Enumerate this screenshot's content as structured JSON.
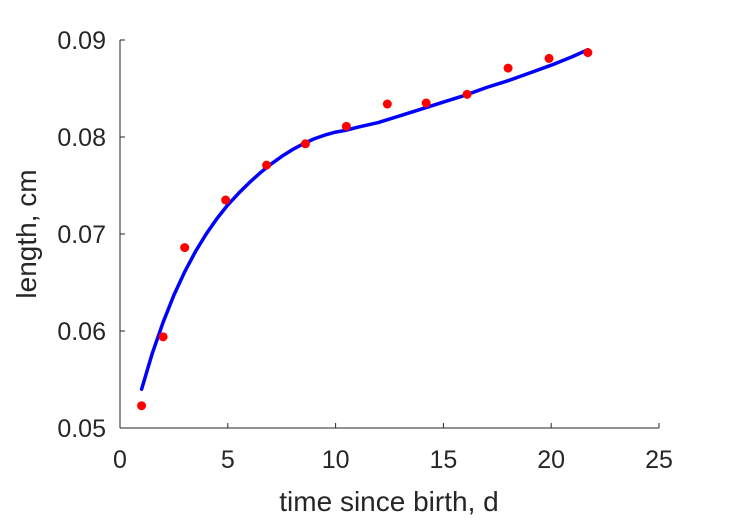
{
  "chart_data": {
    "type": "scatter",
    "title": "",
    "xlabel": "time since birth, d",
    "ylabel": "length, cm",
    "xlim": [
      0,
      25
    ],
    "ylim": [
      0.05,
      0.09
    ],
    "xticks": [
      0,
      5,
      10,
      15,
      20,
      25
    ],
    "yticks": [
      0.05,
      0.06,
      0.07,
      0.08,
      0.09
    ],
    "xtick_labels": [
      "0",
      "5",
      "10",
      "15",
      "20",
      "25"
    ],
    "ytick_labels": [
      "0.05",
      "0.06",
      "0.07",
      "0.08",
      "0.09"
    ],
    "grid": false,
    "legend": "none",
    "series": [
      {
        "type": "scatter",
        "color": "#ff0000",
        "x": [
          1.0,
          2.0,
          3.0,
          4.9,
          6.8,
          8.6,
          10.5,
          12.4,
          14.2,
          16.1,
          18.0,
          19.9,
          21.7
        ],
        "y": [
          0.0523,
          0.0594,
          0.0686,
          0.0735,
          0.0771,
          0.0793,
          0.0811,
          0.0834,
          0.0835,
          0.0844,
          0.0871,
          0.0881,
          0.0887
        ]
      },
      {
        "type": "line",
        "color": "#0000ff",
        "x": [
          1.0,
          1.5,
          2.0,
          2.5,
          3.0,
          3.5,
          4.0,
          4.5,
          5.0,
          5.5,
          6.0,
          6.5,
          7.0,
          7.5,
          8.0,
          8.5,
          9.0,
          9.5,
          10.0,
          10.5,
          11.0,
          12.0,
          13.0,
          14.0,
          15.0,
          16.0,
          17.0,
          18.0,
          19.0,
          20.0,
          21.0,
          21.7
        ],
        "y": [
          0.054,
          0.0577,
          0.0609,
          0.0637,
          0.0661,
          0.0682,
          0.07,
          0.0716,
          0.073,
          0.0742,
          0.0753,
          0.0763,
          0.0772,
          0.078,
          0.0787,
          0.0793,
          0.0798,
          0.0802,
          0.0805,
          0.0807,
          0.081,
          0.0815,
          0.0822,
          0.0829,
          0.0836,
          0.0843,
          0.0851,
          0.0858,
          0.0866,
          0.0874,
          0.0883,
          0.089
        ]
      }
    ]
  }
}
